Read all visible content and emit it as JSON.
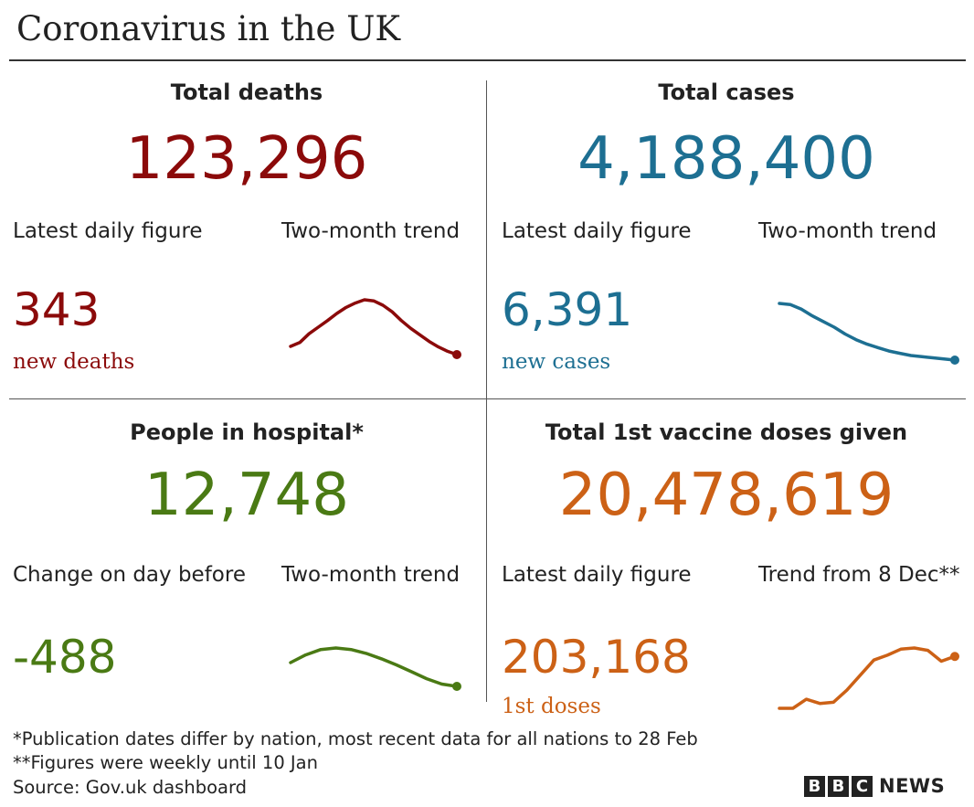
{
  "title": "Coronavirus in the UK",
  "colors": {
    "deaths": "#8b0a0a",
    "cases": "#1d6f92",
    "hospital": "#4a7a14",
    "vaccine": "#cc6116"
  },
  "panels": {
    "deaths": {
      "title": "Total deaths",
      "total": "123,296",
      "latest_label": "Latest daily figure",
      "trend_label": "Two-month trend",
      "latest_value": "343",
      "latest_unit": "new deaths"
    },
    "cases": {
      "title": "Total cases",
      "total": "4,188,400",
      "latest_label": "Latest daily figure",
      "trend_label": "Two-month trend",
      "latest_value": "6,391",
      "latest_unit": "new cases"
    },
    "hospital": {
      "title": "People in hospital*",
      "total": "12,748",
      "latest_label": "Change on day before",
      "trend_label": "Two-month trend",
      "latest_value": "-488"
    },
    "vaccine": {
      "title": "Total 1st vaccine doses given",
      "total": "20,478,619",
      "latest_label": "Latest daily figure",
      "trend_label": "Trend from 8 Dec**",
      "latest_value": "203,168",
      "latest_unit": "1st doses"
    }
  },
  "chart_data": [
    {
      "type": "line",
      "series": [
        {
          "values": [
            0.15,
            0.22,
            0.38,
            0.5,
            0.62,
            0.75,
            0.86,
            0.94,
            1.0,
            0.98,
            0.9,
            0.78,
            0.62,
            0.48,
            0.36,
            0.24,
            0.14,
            0.06,
            0.0
          ]
        }
      ]
    },
    {
      "type": "line",
      "series": [
        {
          "values": [
            1.0,
            0.98,
            0.9,
            0.78,
            0.68,
            0.58,
            0.46,
            0.36,
            0.28,
            0.22,
            0.16,
            0.12,
            0.08,
            0.06,
            0.04,
            0.02,
            0.0
          ]
        }
      ]
    },
    {
      "type": "line",
      "series": [
        {
          "values": [
            0.62,
            0.82,
            0.96,
            1.0,
            0.96,
            0.86,
            0.72,
            0.56,
            0.38,
            0.2,
            0.06,
            0.0
          ]
        }
      ]
    },
    {
      "type": "line",
      "series": [
        {
          "values": [
            0.0,
            0.0,
            0.15,
            0.08,
            0.1,
            0.3,
            0.55,
            0.8,
            0.88,
            0.98,
            1.0,
            0.96,
            0.78,
            0.86
          ]
        }
      ]
    }
  ],
  "footnotes": [
    "*Publication dates differ by nation, most recent data for all nations to 28 Feb",
    "**Figures were weekly until 10 Jan",
    "Source: Gov.uk dashboard"
  ],
  "logo": {
    "letters": [
      "B",
      "B",
      "C"
    ],
    "word": "NEWS"
  }
}
